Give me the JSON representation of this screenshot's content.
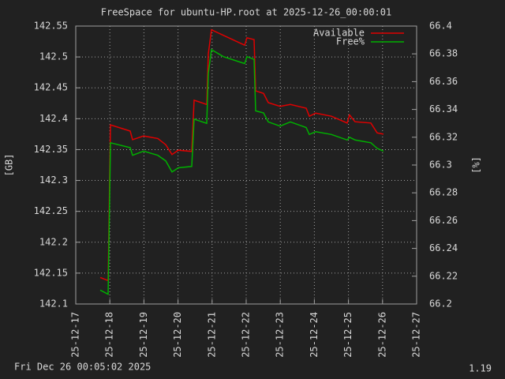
{
  "chart_data": {
    "type": "line",
    "title": "FreeSpace for ubuntu-HP.root  at 2025-12-26_00:00:01",
    "ylabel": "[GB]",
    "y2label": "[%]",
    "footer_left": "Fri Dec 26 00:05:02 2025",
    "footer_right": "1.19",
    "legend": "top-right",
    "grid": true,
    "x": [
      "25-12-17 17:13",
      "25-12-17 22:47",
      "25-12-18 00:27",
      "25-12-18 14:20",
      "25-12-18 16:00",
      "25-12-18 23:47",
      "25-12-19 09:46",
      "25-12-19 15:20",
      "25-12-19 19:47",
      "25-12-20 00:13",
      "25-12-20 09:40",
      "25-12-20 11:20",
      "25-12-20 20:13",
      "25-12-20 21:20",
      "25-12-20 23:33",
      "25-12-21 07:53",
      "25-12-21 22:53",
      "25-12-22 00:33",
      "25-12-22 05:33",
      "25-12-22 06:40",
      "25-12-22 12:13",
      "25-12-22 15:33",
      "25-12-22 23:53",
      "25-12-23 07:07",
      "25-12-23 18:13",
      "25-12-23 20:27",
      "25-12-24 00:53",
      "25-12-24 12:00",
      "25-12-24 23:07",
      "25-12-25 00:47",
      "25-12-25 04:40",
      "25-12-25 15:47",
      "25-12-25 20:13",
      "25-12-26 00:40"
    ],
    "series": [
      {
        "name": "Available",
        "color": "#e00000",
        "axis": "y",
        "values": [
          142.143,
          142.138,
          142.39,
          142.38,
          142.366,
          142.372,
          142.368,
          142.358,
          142.342,
          142.349,
          142.347,
          142.43,
          142.423,
          142.505,
          142.544,
          142.535,
          142.519,
          142.531,
          142.528,
          142.445,
          142.441,
          142.426,
          142.42,
          142.423,
          142.417,
          142.404,
          142.409,
          142.404,
          142.393,
          142.406,
          142.395,
          142.393,
          142.377,
          142.375
        ]
      },
      {
        "name": "Free%",
        "color": "#00b000",
        "axis": "y2",
        "values": [
          66.21,
          66.207,
          66.316,
          66.3125,
          66.307,
          66.31,
          66.307,
          66.303,
          66.295,
          66.298,
          66.299,
          66.333,
          66.33,
          66.366,
          66.383,
          66.378,
          66.373,
          66.378,
          66.376,
          66.339,
          66.3375,
          66.331,
          66.328,
          66.331,
          66.327,
          66.322,
          66.324,
          66.322,
          66.318,
          66.32,
          66.318,
          66.316,
          66.312,
          66.31
        ]
      }
    ],
    "xlim": [
      "25-12-17",
      "25-12-27"
    ],
    "xticks": [
      "25-12-17",
      "25-12-18",
      "25-12-19",
      "25-12-20",
      "25-12-21",
      "25-12-22",
      "25-12-23",
      "25-12-24",
      "25-12-25",
      "25-12-26",
      "25-12-27"
    ],
    "ylim": [
      142.1,
      142.55
    ],
    "yticks": [
      142.1,
      142.15,
      142.2,
      142.25,
      142.3,
      142.35,
      142.4,
      142.45,
      142.5,
      142.55
    ],
    "y2lim": [
      66.2,
      66.4
    ],
    "y2ticks": [
      66.2,
      66.22,
      66.24,
      66.26,
      66.28,
      66.3,
      66.32,
      66.34,
      66.36,
      66.38,
      66.4
    ]
  }
}
